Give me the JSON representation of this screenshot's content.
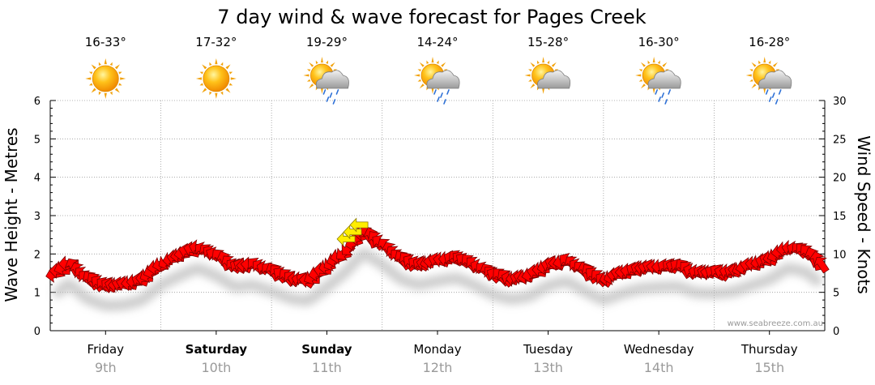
{
  "chart_data": {
    "type": "line",
    "title": "7 day wind & wave forecast for Pages Creek",
    "ylabel": "Wave Height - Metres",
    "y2label": "Wind Speed - Knots",
    "ylim": [
      0,
      6
    ],
    "y2lim": [
      0,
      30
    ],
    "yticks": [
      "0",
      "1",
      "2",
      "3",
      "4",
      "5",
      "6"
    ],
    "y2ticks": [
      "0",
      "5",
      "10",
      "15",
      "20",
      "25",
      "30"
    ],
    "grid": true,
    "credit": "www.seabreeze.com.au",
    "days": [
      {
        "name": "Friday",
        "date": "9th",
        "temp": "16-33°",
        "weather": "sunny-icon",
        "bold": false
      },
      {
        "name": "Saturday",
        "date": "10th",
        "temp": "17-32°",
        "weather": "sunny-icon",
        "bold": true
      },
      {
        "name": "Sunday",
        "date": "11th",
        "temp": "19-29°",
        "weather": "sun-cloud-rain-icon",
        "bold": true
      },
      {
        "name": "Monday",
        "date": "12th",
        "temp": "14-24°",
        "weather": "sun-cloud-rain-icon",
        "bold": false
      },
      {
        "name": "Tuesday",
        "date": "13th",
        "temp": "15-28°",
        "weather": "sun-cloud-icon",
        "bold": false
      },
      {
        "name": "Wednesday",
        "date": "14th",
        "temp": "16-30°",
        "weather": "sun-cloud-rain-icon",
        "bold": false
      },
      {
        "name": "Thursday",
        "date": "15th",
        "temp": "16-28°",
        "weather": "sun-cloud-rain-icon",
        "bold": false
      }
    ],
    "series": [
      {
        "values_day": [
          0,
          0.17,
          0.33,
          0.5,
          0.67,
          0.83,
          1,
          1.17,
          1.33,
          1.5,
          1.67,
          1.83,
          2,
          2.17,
          2.33,
          2.5,
          2.67,
          2.83,
          3,
          3.17,
          3.33,
          3.5,
          3.67,
          3.83,
          4,
          4.17,
          4.33,
          4.5,
          4.67,
          4.83,
          5,
          5.17,
          5.33,
          5.5,
          5.67,
          5.83,
          6,
          6.17,
          6.33,
          6.5,
          6.67,
          6.83,
          7
        ],
        "wind_knots": [
          6.5,
          8.5,
          6.5,
          5.6,
          5.7,
          6.3,
          8.3,
          9.5,
          10.5,
          9.5,
          8,
          8.3,
          7.5,
          6.5,
          6.2,
          8,
          10,
          12.5,
          11,
          9,
          8.3,
          8.8,
          9.2,
          8.3,
          7,
          6.4,
          6.8,
          8.2,
          8.8,
          7.5,
          6.3,
          7.2,
          7.8,
          8,
          8.1,
          7.3,
          7.2,
          7.4,
          8.2,
          9,
          10.5,
          10,
          8
        ]
      }
    ]
  }
}
